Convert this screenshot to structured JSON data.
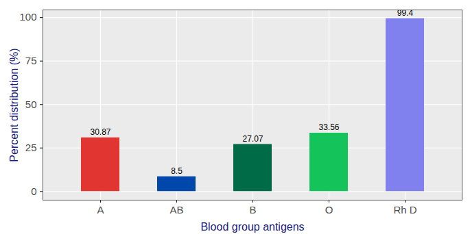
{
  "chart_data": {
    "type": "bar",
    "x_label": "Blood group antigens",
    "y_label": "Percent distribution (%)",
    "categories": [
      "A",
      "AB",
      "B",
      "O",
      "Rh D"
    ],
    "values": [
      30.87,
      8.5,
      27.07,
      33.56,
      99.4
    ],
    "colors": [
      "#e03530",
      "#0047ab",
      "#006b47",
      "#14c45a",
      "#8080ee"
    ],
    "ylim": [
      -5,
      104.4
    ],
    "yticks": [
      0,
      25,
      50,
      75,
      100
    ],
    "grid": true,
    "data_labels": true
  }
}
